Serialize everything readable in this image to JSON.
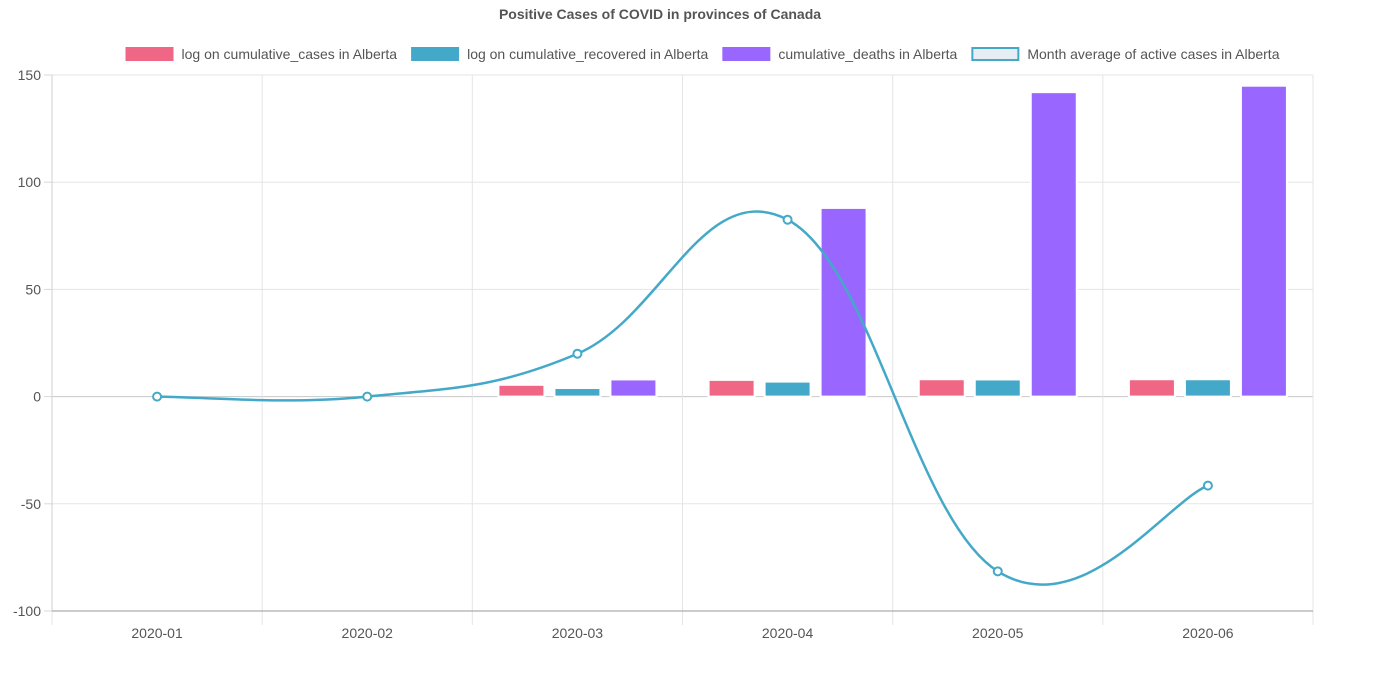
{
  "chart_data": {
    "type": "bar",
    "title": "Positive Cases of COVID in provinces of Canada",
    "categories": [
      "2020-01",
      "2020-02",
      "2020-03",
      "2020-04",
      "2020-05",
      "2020-06"
    ],
    "series": [
      {
        "name": "log on cumulative_cases in Alberta",
        "type": "bar",
        "color": "#f06685",
        "values": [
          0,
          0,
          5.5,
          7.8,
          8.1,
          8.1
        ]
      },
      {
        "name": "log on cumulative_recovered in Alberta",
        "type": "bar",
        "color": "#44a9c8",
        "values": [
          0,
          0,
          4.0,
          7.0,
          8.0,
          8.1
        ]
      },
      {
        "name": "cumulative_deaths in Alberta",
        "type": "bar",
        "color": "#9966ff",
        "values": [
          0,
          0,
          8,
          88,
          142,
          145
        ]
      },
      {
        "name": "Month average of active cases in Alberta",
        "type": "line",
        "color": "#44a9c8",
        "legend_fill": "#e6eef4",
        "values": [
          0,
          0,
          20,
          82.5,
          -81.5,
          -41.5
        ]
      }
    ],
    "ylim": [
      -100,
      150
    ],
    "yticks": [
      150,
      100,
      50,
      0,
      -50,
      -100
    ],
    "ytick_labels": [
      "150",
      "100",
      "50",
      "0",
      "-50",
      "-100"
    ],
    "xlabel": "",
    "ylabel": "",
    "grid": true,
    "legend_position": "top"
  }
}
